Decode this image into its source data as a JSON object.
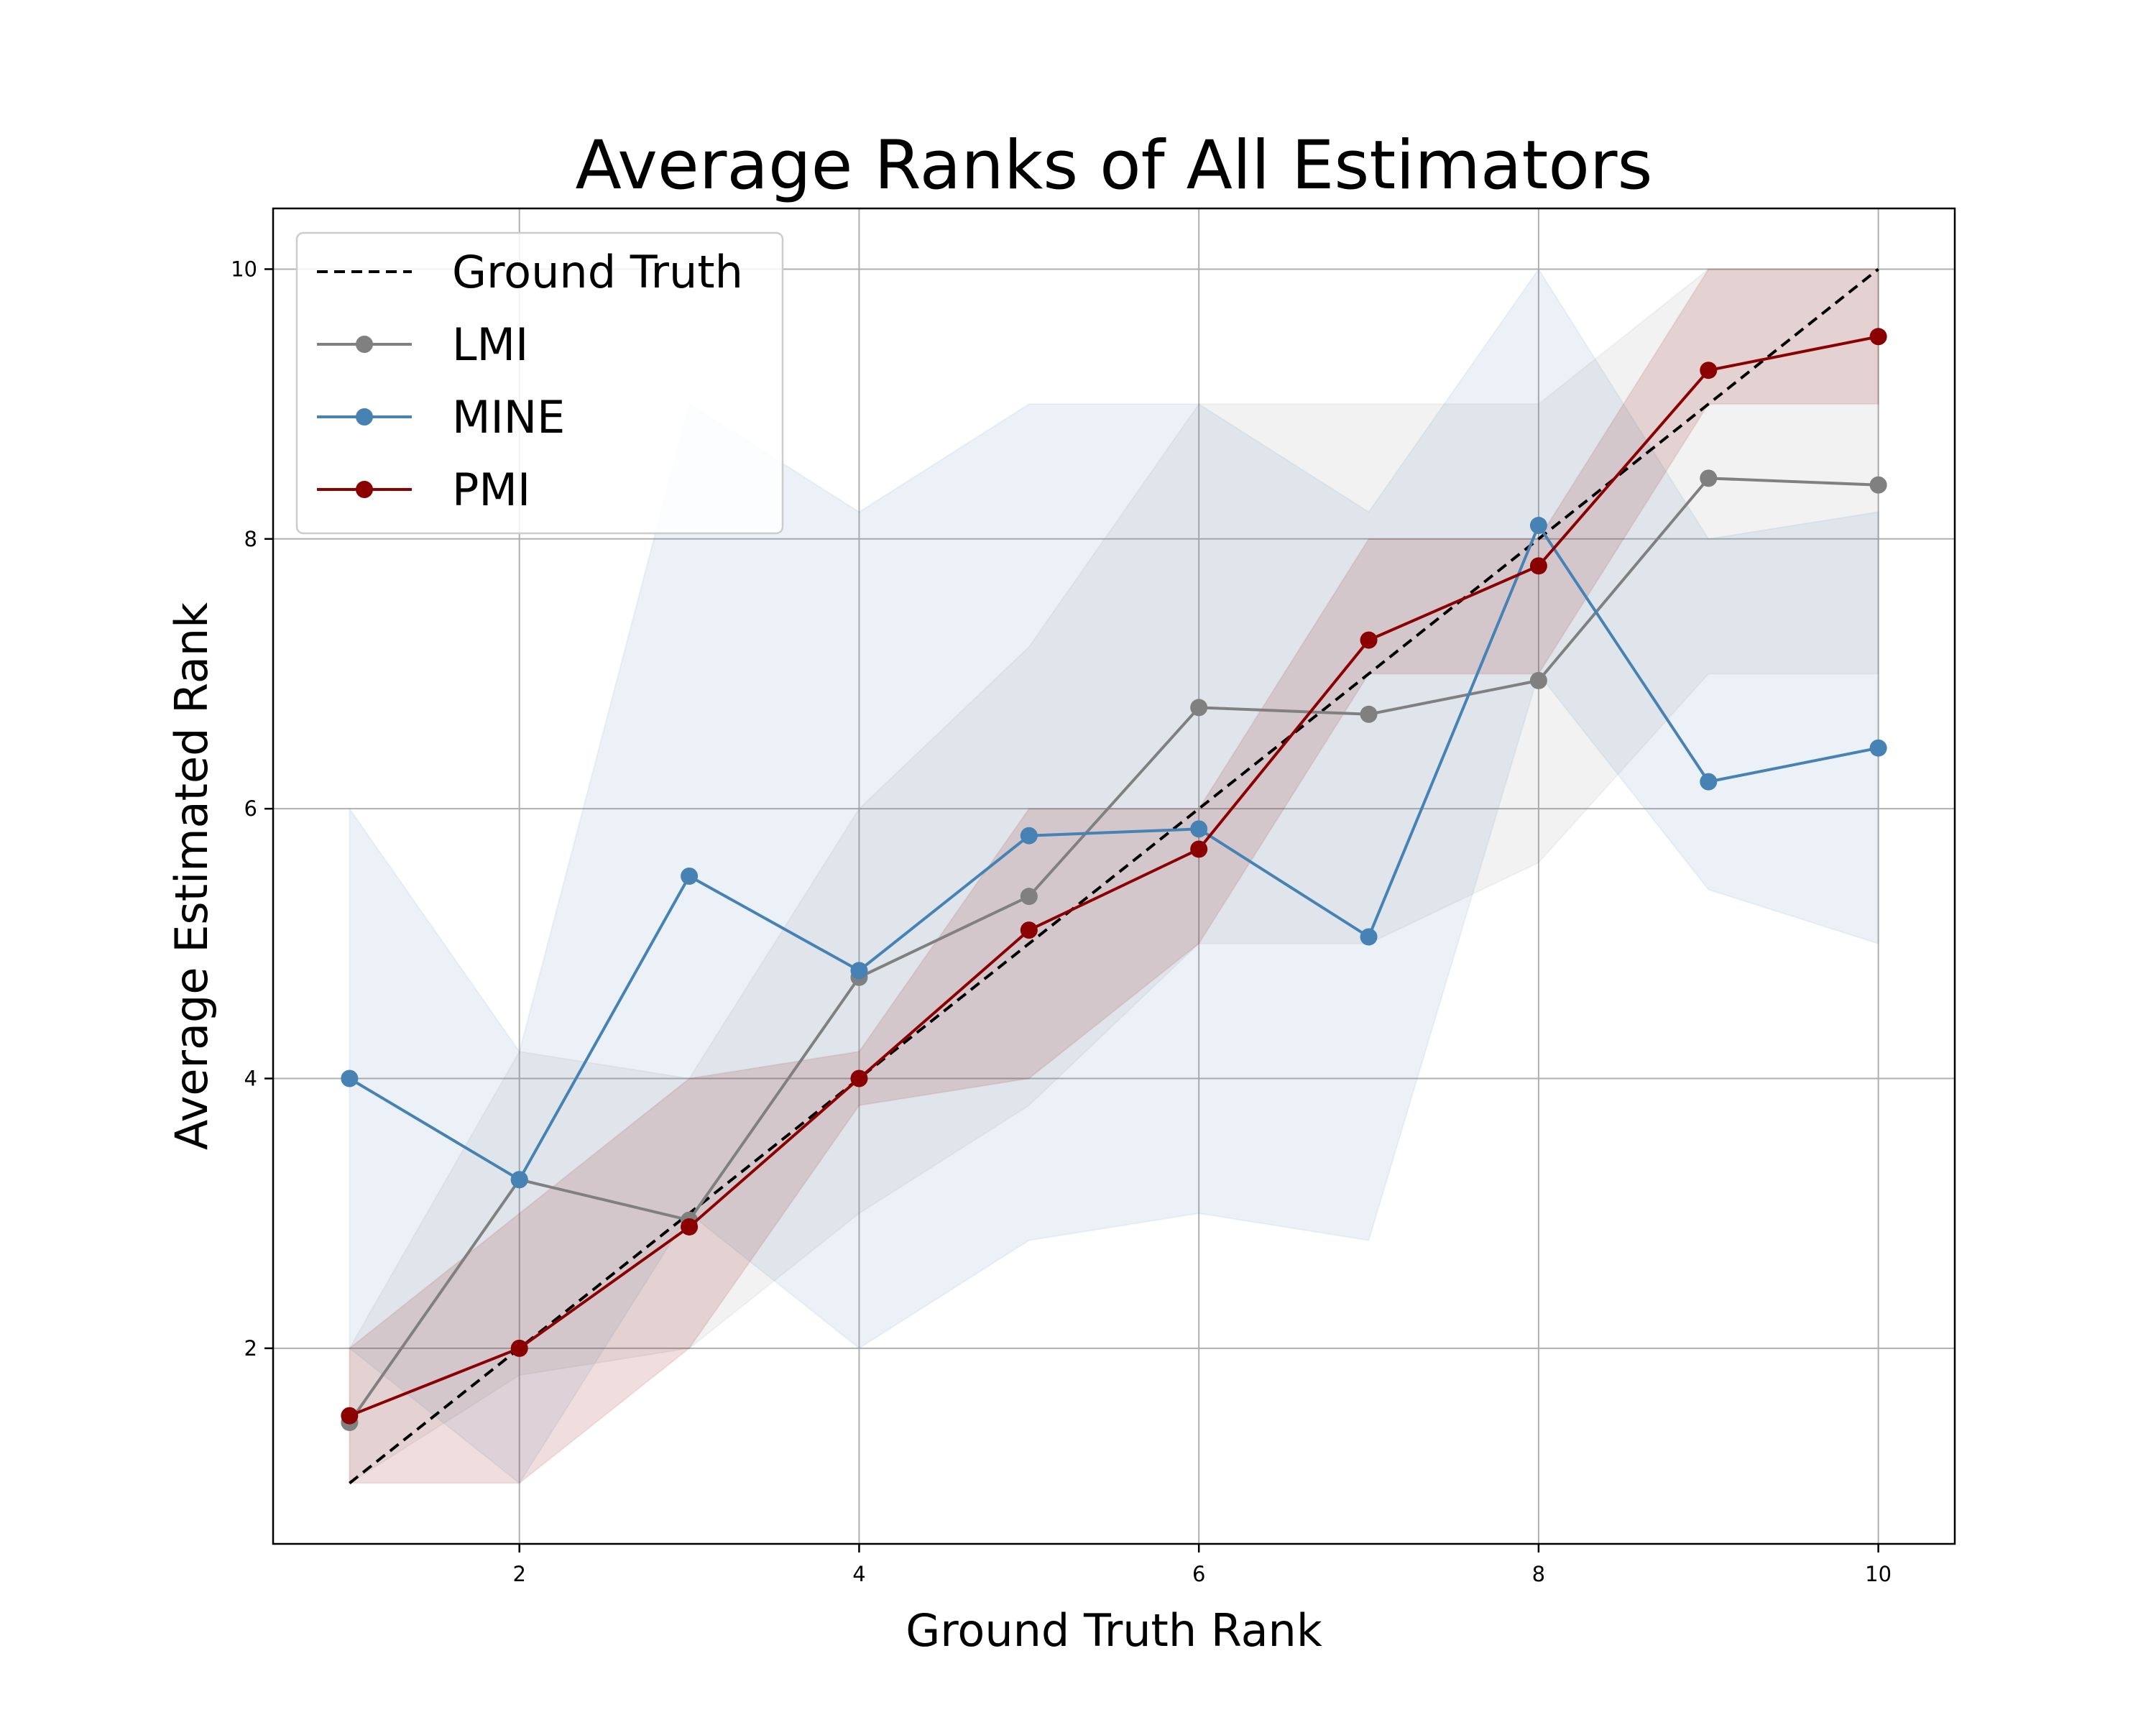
{
  "chart_data": {
    "type": "line",
    "title": "Average Ranks of All Estimators",
    "xlabel": "Ground Truth Rank",
    "ylabel": "Average Estimated Rank",
    "xlim": [
      0.55,
      10.45
    ],
    "ylim": [
      0.55,
      10.45
    ],
    "xticks": [
      2,
      4,
      6,
      8,
      10
    ],
    "yticks": [
      2,
      4,
      6,
      8,
      10
    ],
    "grid": true,
    "legend_position": "top-left",
    "x": [
      1,
      2,
      3,
      4,
      5,
      6,
      7,
      8,
      9,
      10
    ],
    "reference_line": {
      "name": "Ground Truth",
      "x": [
        1,
        10
      ],
      "y": [
        1,
        10
      ],
      "color": "#000000",
      "style": "dashed"
    },
    "series": [
      {
        "name": "LMI",
        "color": "#808080",
        "values": [
          1.45,
          3.25,
          2.95,
          4.75,
          5.35,
          6.75,
          6.7,
          6.95,
          8.45,
          8.4
        ],
        "band_upper": [
          2.0,
          4.2,
          4.0,
          6.0,
          7.2,
          9.0,
          9.0,
          9.0,
          10.0,
          10.0
        ],
        "band_lower": [
          1.0,
          1.8,
          2.0,
          3.0,
          3.8,
          5.0,
          5.0,
          5.6,
          7.0,
          7.0
        ]
      },
      {
        "name": "MINE",
        "color": "#4682b4",
        "values": [
          4.0,
          3.25,
          5.5,
          4.8,
          5.8,
          5.85,
          5.05,
          8.1,
          6.2,
          6.45
        ],
        "band_upper": [
          6.0,
          4.2,
          9.0,
          8.2,
          9.0,
          9.0,
          8.2,
          10.0,
          8.0,
          8.2
        ],
        "band_lower": [
          2.0,
          1.0,
          3.0,
          2.0,
          2.8,
          3.0,
          2.8,
          7.0,
          5.4,
          5.0
        ]
      },
      {
        "name": "PMI",
        "color": "#8b0000",
        "values": [
          1.5,
          2.0,
          2.9,
          4.0,
          5.1,
          5.7,
          7.25,
          7.8,
          9.25,
          9.5
        ],
        "band_upper": [
          2.0,
          3.0,
          4.0,
          4.2,
          6.0,
          6.0,
          8.0,
          8.0,
          10.0,
          10.0
        ],
        "band_lower": [
          1.0,
          1.0,
          2.0,
          3.8,
          4.0,
          5.0,
          7.0,
          7.0,
          9.0,
          9.0
        ]
      }
    ]
  }
}
